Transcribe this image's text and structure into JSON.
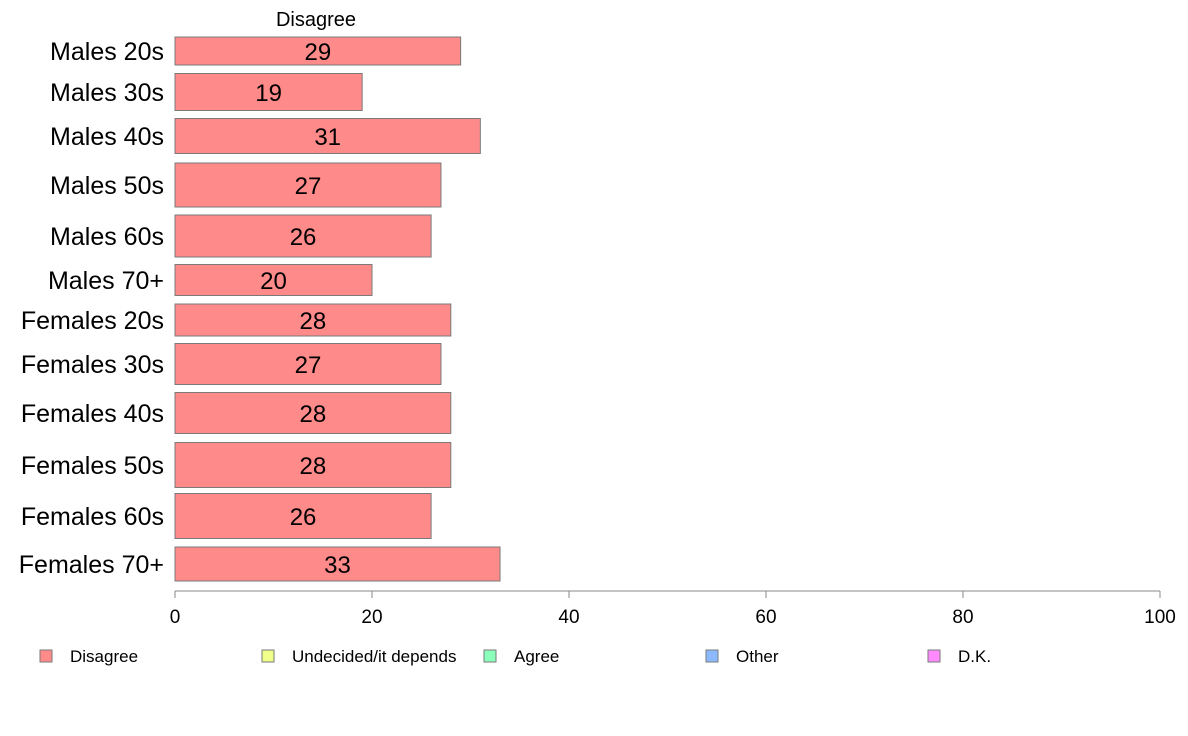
{
  "chart_data": {
    "type": "bar",
    "orientation": "horizontal",
    "stacked": true,
    "column_header": "Disagree",
    "categories": [
      "Males 20s",
      "Males 30s",
      "Males 40s",
      "Males 50s",
      "Males 60s",
      "Males 70+",
      "Females 20s",
      "Females 30s",
      "Females 40s",
      "Females 50s",
      "Females 60s",
      "Females 70+"
    ],
    "series": [
      {
        "name": "Disagree",
        "color": "#ff8a8a",
        "values": [
          29,
          19,
          31,
          27,
          26,
          20,
          28,
          27,
          28,
          28,
          26,
          33
        ]
      }
    ],
    "data_labels": [
      "29",
      "19",
      "31",
      "27",
      "26",
      "20",
      "28",
      "27",
      "28",
      "28",
      "26",
      "33"
    ],
    "xlim": [
      0,
      100
    ],
    "x_ticks": [
      0,
      20,
      40,
      60,
      80,
      100
    ],
    "grid": false,
    "legend": {
      "placement": "bottom",
      "items": [
        {
          "label": "Disagree",
          "color": "#ff8a8a"
        },
        {
          "label": "Undecided/it depends",
          "color": "#f0ff8a"
        },
        {
          "label": "Agree",
          "color": "#8affb9"
        },
        {
          "label": "Other",
          "color": "#8ab9ff"
        },
        {
          "label": "D.K.",
          "color": "#ff8aff"
        }
      ]
    }
  }
}
